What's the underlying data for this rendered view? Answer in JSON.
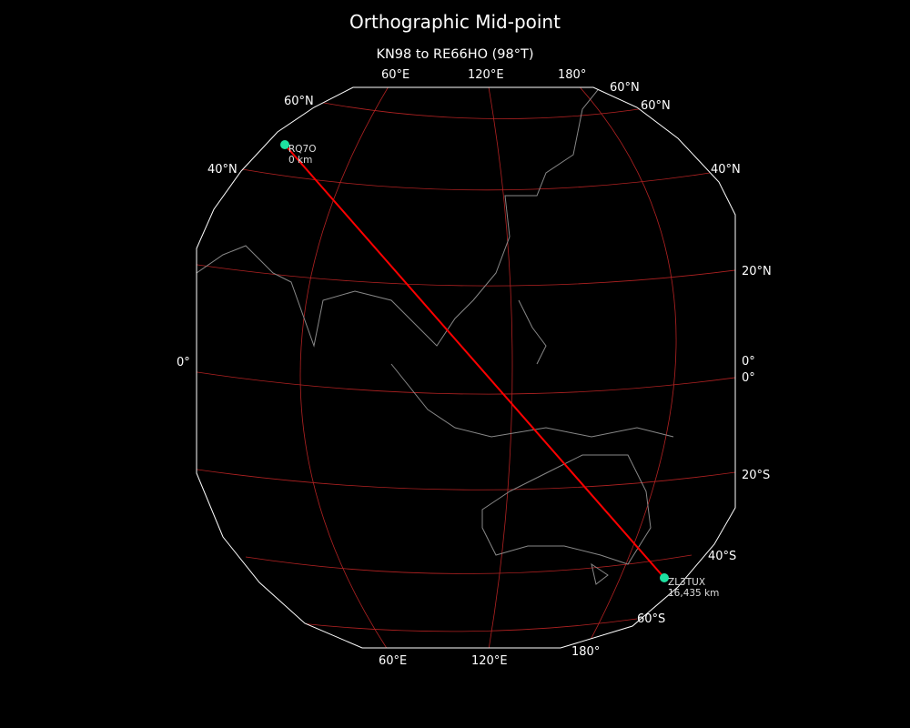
{
  "title": "Orthographic Mid-point",
  "subtitle": "KN98 to RE66HO (98°T)",
  "colors": {
    "background": "#000000",
    "path": "#ff0000",
    "graticule": "#b22222",
    "coast": "#888888",
    "station": "#1ee0a0"
  },
  "grid_labels": {
    "top": [
      "60°E",
      "120°E",
      "180°"
    ],
    "bottom": [
      "60°E",
      "120°E",
      "180°"
    ],
    "left": [
      "60°N",
      "40°N",
      "0°"
    ],
    "right": [
      "60°N",
      "60°N",
      "40°N",
      "20°N",
      "0°",
      "0°",
      "20°S",
      "40°S",
      "60°S"
    ]
  },
  "stations": [
    {
      "call": "RQ7O",
      "distance": "0 km"
    },
    {
      "call": "ZL3TUX",
      "distance": "16,435 km"
    }
  ]
}
